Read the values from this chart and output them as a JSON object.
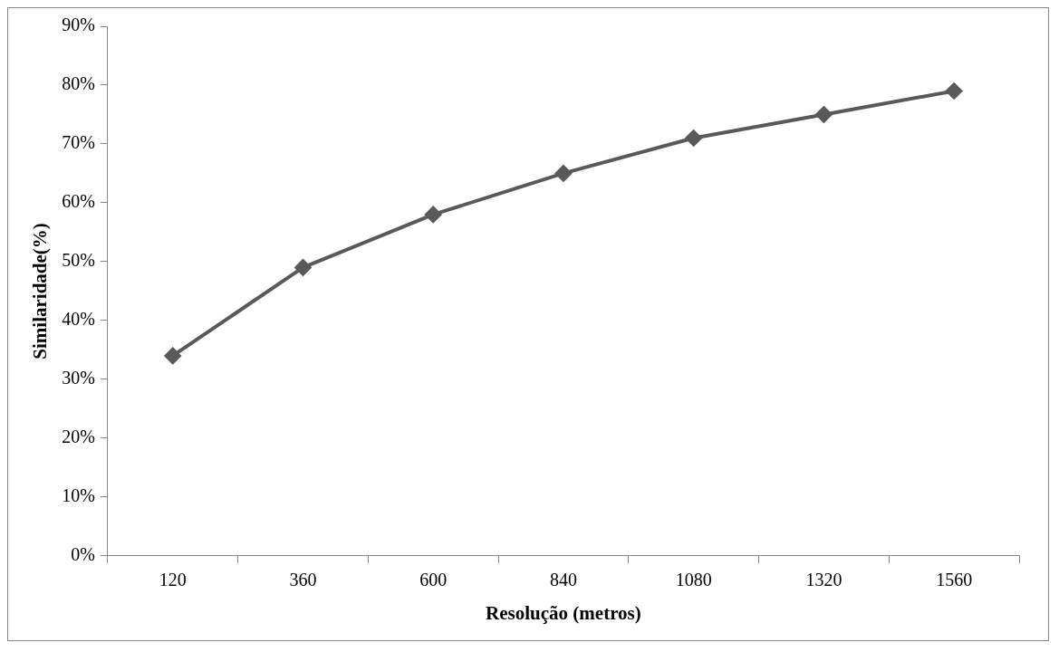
{
  "chart_data": {
    "type": "line",
    "xlabel": "Resolução (metros)",
    "ylabel": "Similaridade(%)",
    "categories": [
      "120",
      "360",
      "600",
      "840",
      "1080",
      "1320",
      "1560"
    ],
    "series": [
      {
        "color": "#595959",
        "values": [
          34,
          49,
          58,
          65,
          71,
          75,
          79
        ]
      }
    ],
    "ylim": [
      0,
      90
    ],
    "yticks": [
      {
        "value": 0,
        "label": "0%"
      },
      {
        "value": 10,
        "label": "10%"
      },
      {
        "value": 20,
        "label": "20%"
      },
      {
        "value": 30,
        "label": "30%"
      },
      {
        "value": 40,
        "label": "40%"
      },
      {
        "value": 50,
        "label": "50%"
      },
      {
        "value": 60,
        "label": "60%"
      },
      {
        "value": 70,
        "label": "70%"
      },
      {
        "value": 80,
        "label": "80%"
      },
      {
        "value": 90,
        "label": "90%"
      }
    ],
    "grid": false,
    "legend": false,
    "marker": "diamond",
    "line_style": "solid"
  }
}
